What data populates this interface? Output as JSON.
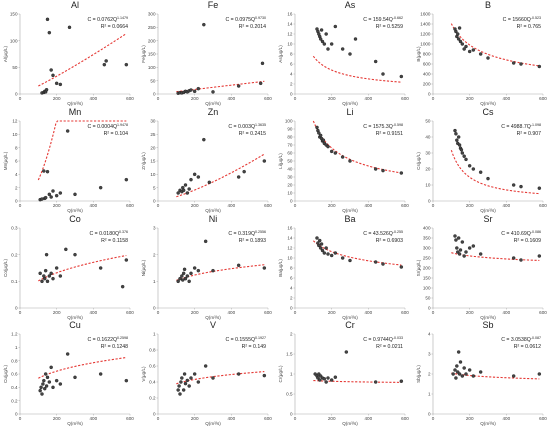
{
  "figure": {
    "x_axis_label": "Q(m³/s)",
    "x_ticks": [
      0,
      200,
      400,
      600
    ],
    "panels": [
      {
        "element": "Al",
        "ylabel": "Al(μg/L)",
        "eq_coef": "C = 0.0762Q",
        "eq_exp": "1.1479",
        "r2": "R² = 0.0664",
        "chart_data": {
          "type": "scatter",
          "xlim": [
            0,
            600
          ],
          "ylim": [
            0,
            150
          ],
          "yticks": [
            0,
            50,
            100,
            150
          ],
          "x": [
            120,
            130,
            135,
            140,
            145,
            150,
            160,
            170,
            180,
            200,
            220,
            270,
            460,
            470,
            580
          ],
          "y": [
            2,
            3,
            5,
            4,
            8,
            140,
            115,
            45,
            35,
            20,
            18,
            125,
            55,
            62,
            55
          ],
          "fit": {
            "form": "power",
            "a": 0.0762,
            "b": 1.1479
          }
        }
      },
      {
        "element": "Fe",
        "ylabel": "Fe(μg/L)",
        "eq_coef": "C = 0.0975Q",
        "eq_exp": "0.9730",
        "r2": "R² = 0.2014",
        "chart_data": {
          "type": "scatter",
          "xlim": [
            0,
            600
          ],
          "ylim": [
            0,
            300
          ],
          "yticks": [
            0,
            50,
            100,
            150,
            200,
            250,
            300
          ],
          "x": [
            110,
            120,
            130,
            140,
            150,
            160,
            170,
            180,
            200,
            220,
            250,
            300,
            440,
            560,
            570
          ],
          "y": [
            3,
            5,
            4,
            6,
            10,
            8,
            12,
            15,
            10,
            20,
            260,
            8,
            30,
            40,
            115
          ],
          "fit": {
            "form": "power",
            "a": 0.0975,
            "b": 0.973
          }
        }
      },
      {
        "element": "As",
        "ylabel": "As(μg/L)",
        "eq_coef": "C = 159.54Q",
        "eq_exp": "-0.662",
        "r2": "R² = 0.5259",
        "chart_data": {
          "type": "scatter",
          "xlim": [
            0,
            600
          ],
          "ylim": [
            0,
            16
          ],
          "yticks": [
            0,
            2,
            4,
            6,
            8,
            10,
            12,
            14,
            16
          ],
          "x": [
            120,
            125,
            130,
            135,
            140,
            145,
            150,
            160,
            170,
            180,
            200,
            220,
            260,
            300,
            330,
            440,
            480,
            580
          ],
          "y": [
            13,
            12.5,
            12,
            11.5,
            11,
            12.8,
            10.5,
            10,
            12,
            9,
            10,
            13.5,
            9,
            8,
            11,
            6.5,
            4,
            3.5
          ],
          "fit": {
            "form": "power",
            "a": 159.54,
            "b": -0.662
          }
        }
      },
      {
        "element": "B",
        "ylabel": "B(μg/L)",
        "eq_coef": "C = 15660Q",
        "eq_exp": "-0.523",
        "r2": "R² = 0.765",
        "chart_data": {
          "type": "scatter",
          "xlim": [
            0,
            600
          ],
          "ylim": [
            0,
            1600
          ],
          "yticks": [
            0,
            200,
            400,
            600,
            800,
            1000,
            1200,
            1400,
            1600
          ],
          "x": [
            120,
            125,
            130,
            135,
            140,
            145,
            150,
            160,
            170,
            180,
            200,
            220,
            260,
            300,
            440,
            480,
            580
          ],
          "y": [
            1300,
            1250,
            1150,
            1200,
            1100,
            1320,
            1050,
            1000,
            900,
            950,
            850,
            880,
            800,
            720,
            620,
            600,
            550
          ],
          "fit": {
            "form": "power",
            "a": 15660,
            "b": -0.523
          }
        }
      },
      {
        "element": "Mn",
        "ylabel": "Mn(μg/L)",
        "eq_coef": "C = 0.0004Q",
        "eq_exp": "1.9478",
        "r2": "R² = 0.104",
        "chart_data": {
          "type": "scatter",
          "xlim": [
            0,
            600
          ],
          "ylim": [
            0,
            12
          ],
          "yticks": [
            0,
            2,
            4,
            6,
            8,
            10,
            12
          ],
          "x": [
            110,
            120,
            130,
            135,
            140,
            150,
            160,
            170,
            180,
            200,
            220,
            260,
            300,
            440,
            580
          ],
          "y": [
            0.2,
            0.3,
            4.5,
            0.4,
            0.5,
            4.4,
            1,
            0.6,
            1.5,
            0.8,
            1.2,
            10.5,
            1,
            2,
            3.2
          ],
          "fit": {
            "form": "power",
            "a": 0.0004,
            "b": 1.9478
          }
        }
      },
      {
        "element": "Zn",
        "ylabel": "Zn(μg/L)",
        "eq_coef": "C = 0.003Q",
        "eq_exp": "1.3635",
        "r2": "R² = 0.2415",
        "chart_data": {
          "type": "scatter",
          "xlim": [
            0,
            600
          ],
          "ylim": [
            0,
            30
          ],
          "yticks": [
            0,
            5,
            10,
            15,
            20,
            25,
            30
          ],
          "x": [
            110,
            120,
            130,
            135,
            140,
            150,
            160,
            170,
            180,
            200,
            220,
            250,
            280,
            440,
            470,
            580
          ],
          "y": [
            3,
            4,
            3.5,
            5,
            4,
            6,
            3,
            4.5,
            8,
            10,
            9,
            23,
            7,
            9,
            11,
            15
          ],
          "fit": {
            "form": "power",
            "a": 0.003,
            "b": 1.3635
          }
        }
      },
      {
        "element": "Li",
        "ylabel": "Li(μg/L)",
        "eq_coef": "C = 1575.3Q",
        "eq_exp": "-0.598",
        "r2": "R² = 0.9151",
        "chart_data": {
          "type": "scatter",
          "xlim": [
            0,
            600
          ],
          "ylim": [
            0,
            100
          ],
          "yticks": [
            0,
            10,
            20,
            30,
            40,
            50,
            60,
            70,
            80,
            90,
            100
          ],
          "x": [
            120,
            125,
            130,
            135,
            140,
            145,
            150,
            155,
            160,
            170,
            180,
            200,
            220,
            260,
            300,
            440,
            480,
            580
          ],
          "y": [
            92,
            88,
            85,
            80,
            82,
            78,
            75,
            76,
            72,
            70,
            68,
            62,
            60,
            55,
            50,
            40,
            38,
            35
          ],
          "fit": {
            "form": "power",
            "a": 1575.3,
            "b": -0.598
          }
        }
      },
      {
        "element": "Cs",
        "ylabel": "Cs(μg/L)",
        "eq_coef": "C = 4988.7Q",
        "eq_exp": "-1.098",
        "r2": "R² = 0.907",
        "chart_data": {
          "type": "scatter",
          "xlim": [
            0,
            600
          ],
          "ylim": [
            0,
            50
          ],
          "yticks": [
            0,
            10,
            20,
            30,
            40,
            50
          ],
          "x": [
            120,
            125,
            130,
            135,
            140,
            145,
            150,
            155,
            160,
            170,
            180,
            200,
            220,
            260,
            300,
            440,
            480,
            580
          ],
          "y": [
            44,
            42,
            38,
            36,
            40,
            35,
            33,
            32,
            30,
            28,
            26,
            22,
            20,
            18,
            14,
            10,
            9,
            8
          ],
          "fit": {
            "form": "power",
            "a": 4988.7,
            "b": -1.098
          }
        }
      },
      {
        "element": "Co",
        "ylabel": "Co(μg/L)",
        "eq_coef": "C = 0.0180Q",
        "eq_exp": "0.376",
        "r2": "R² = 0.1158",
        "chart_data": {
          "type": "scatter",
          "xlim": [
            0,
            600
          ],
          "ylim": [
            0,
            0.3
          ],
          "yticks": [
            0,
            0.1,
            0.2,
            0.3
          ],
          "x": [
            110,
            120,
            130,
            135,
            140,
            145,
            150,
            160,
            170,
            180,
            200,
            220,
            250,
            300,
            440,
            560,
            580
          ],
          "y": [
            0.13,
            0.1,
            0.12,
            0.11,
            0.14,
            0.2,
            0.1,
            0.12,
            0.13,
            0.11,
            0.15,
            0.12,
            0.22,
            0.2,
            0.15,
            0.08,
            0.18
          ],
          "fit": {
            "form": "power",
            "a": 0.018,
            "b": 0.376
          }
        }
      },
      {
        "element": "Ni",
        "ylabel": "Ni(μg/L)",
        "eq_coef": "C = 0.319Q",
        "eq_exp": "0.2556",
        "r2": "R² = 0.1893",
        "chart_data": {
          "type": "scatter",
          "xlim": [
            0,
            600
          ],
          "ylim": [
            0,
            3
          ],
          "yticks": [
            0,
            1,
            2,
            3
          ],
          "x": [
            110,
            120,
            130,
            135,
            140,
            145,
            150,
            160,
            170,
            180,
            200,
            220,
            260,
            300,
            440,
            580
          ],
          "y": [
            1,
            1.1,
            1.2,
            1.05,
            1.3,
            1.45,
            1.1,
            1.2,
            1,
            1.3,
            1.5,
            1.4,
            2.5,
            1.4,
            1.6,
            1.5
          ],
          "fit": {
            "form": "power",
            "a": 0.319,
            "b": 0.2556
          }
        }
      },
      {
        "element": "Ba",
        "ylabel": "Ba(μg/L)",
        "eq_coef": "C = 43.526Q",
        "eq_exp": "-0.255",
        "r2": "R² = 0.6903",
        "chart_data": {
          "type": "scatter",
          "xlim": [
            0,
            600
          ],
          "ylim": [
            0,
            16
          ],
          "yticks": [
            0,
            2,
            4,
            6,
            8,
            10,
            12,
            14,
            16
          ],
          "x": [
            120,
            125,
            130,
            135,
            140,
            145,
            150,
            160,
            170,
            180,
            200,
            220,
            260,
            300,
            440,
            480,
            580
          ],
          "y": [
            14,
            13,
            12.5,
            13.5,
            12,
            12.8,
            11.5,
            11,
            12,
            10.8,
            10.5,
            11,
            10,
            9.5,
            9.2,
            8.8,
            8.2
          ],
          "fit": {
            "form": "power",
            "a": 43.526,
            "b": -0.255
          }
        }
      },
      {
        "element": "Sr",
        "ylabel": "Sr(μg/L)",
        "eq_coef": "C = 410.69Q",
        "eq_exp": "-0.086",
        "r2": "R² = 0.1609",
        "chart_data": {
          "type": "scatter",
          "xlim": [
            0,
            600
          ],
          "ylim": [
            0,
            400
          ],
          "yticks": [
            0,
            50,
            100,
            150,
            200,
            250,
            300,
            350,
            400
          ],
          "x": [
            120,
            125,
            130,
            135,
            140,
            145,
            150,
            160,
            170,
            180,
            200,
            220,
            260,
            440,
            480,
            580
          ],
          "y": [
            360,
            340,
            300,
            280,
            350,
            270,
            290,
            330,
            260,
            280,
            300,
            310,
            270,
            250,
            240,
            260
          ],
          "fit": {
            "form": "power",
            "a": 410.69,
            "b": -0.086
          }
        }
      },
      {
        "element": "Cu",
        "ylabel": "Cu(μg/L)",
        "eq_coef": "C = 0.1622Q",
        "eq_exp": "0.2598",
        "r2": "R² = 0.1248",
        "chart_data": {
          "type": "scatter",
          "xlim": [
            0,
            600
          ],
          "ylim": [
            0,
            1.2
          ],
          "yticks": [
            0,
            0.2,
            0.4,
            0.6,
            0.8,
            1.0,
            1.2
          ],
          "x": [
            110,
            115,
            120,
            125,
            130,
            135,
            140,
            145,
            150,
            160,
            170,
            180,
            200,
            220,
            260,
            300,
            440,
            580
          ],
          "y": [
            0.35,
            0.4,
            0.3,
            0.45,
            0.5,
            0.38,
            0.6,
            0.42,
            0.55,
            0.48,
            0.7,
            0.4,
            0.5,
            0.45,
            0.9,
            0.55,
            0.6,
            0.5
          ],
          "fit": {
            "form": "power",
            "a": 0.1622,
            "b": 0.2598
          }
        }
      },
      {
        "element": "V",
        "ylabel": "V(μg/L)",
        "eq_coef": "C = 0.1555Q",
        "eq_exp": "0.1927",
        "r2": "R² = 0.149",
        "chart_data": {
          "type": "scatter",
          "xlim": [
            0,
            600
          ],
          "ylim": [
            0,
            1.0
          ],
          "yticks": [
            0,
            0.2,
            0.4,
            0.6,
            0.8,
            1.0
          ],
          "x": [
            110,
            115,
            120,
            125,
            130,
            140,
            145,
            150,
            160,
            170,
            180,
            200,
            220,
            260,
            300,
            440,
            580
          ],
          "y": [
            0.3,
            0.35,
            0.25,
            0.4,
            0.45,
            0.3,
            0.5,
            0.38,
            0.42,
            0.35,
            0.45,
            0.5,
            0.4,
            0.6,
            0.45,
            0.5,
            0.48
          ],
          "fit": {
            "form": "power",
            "a": 0.1555,
            "b": 0.1927
          }
        }
      },
      {
        "element": "Cr",
        "ylabel": "Cr(μg/L)",
        "eq_coef": "C = 0.9744Q",
        "eq_exp": "-0.033",
        "r2": "R² = 0.0211",
        "chart_data": {
          "type": "scatter",
          "xlim": [
            0,
            600
          ],
          "ylim": [
            0,
            2
          ],
          "yticks": [
            0,
            0.5,
            1.0,
            1.5,
            2.0
          ],
          "x": [
            110,
            120,
            125,
            130,
            135,
            140,
            150,
            160,
            170,
            180,
            200,
            220,
            280,
            440,
            580
          ],
          "y": [
            1.0,
            0.95,
            0.9,
            1.0,
            0.85,
            0.95,
            0.9,
            0.88,
            0.8,
            0.9,
            0.85,
            0.92,
            1.55,
            0.8,
            0.82
          ],
          "fit": {
            "form": "power",
            "a": 0.9744,
            "b": -0.033
          }
        }
      },
      {
        "element": "Sb",
        "ylabel": "Sb(μg/L)",
        "eq_coef": "C = 3.0538Q",
        "eq_exp": "-0.087",
        "r2": "R² = 0.0612",
        "chart_data": {
          "type": "scatter",
          "xlim": [
            0,
            600
          ],
          "ylim": [
            0,
            4
          ],
          "yticks": [
            0,
            1,
            2,
            3,
            4
          ],
          "x": [
            110,
            120,
            125,
            130,
            135,
            140,
            145,
            150,
            160,
            170,
            180,
            200,
            220,
            260,
            440,
            580
          ],
          "y": [
            2,
            2.2,
            1.8,
            2.4,
            2.1,
            3.1,
            2.0,
            2.6,
            1.9,
            2.3,
            2.0,
            2.2,
            1.9,
            2.1,
            1.9,
            2.0
          ],
          "fit": {
            "form": "power",
            "a": 3.0538,
            "b": -0.087
          }
        }
      }
    ]
  }
}
